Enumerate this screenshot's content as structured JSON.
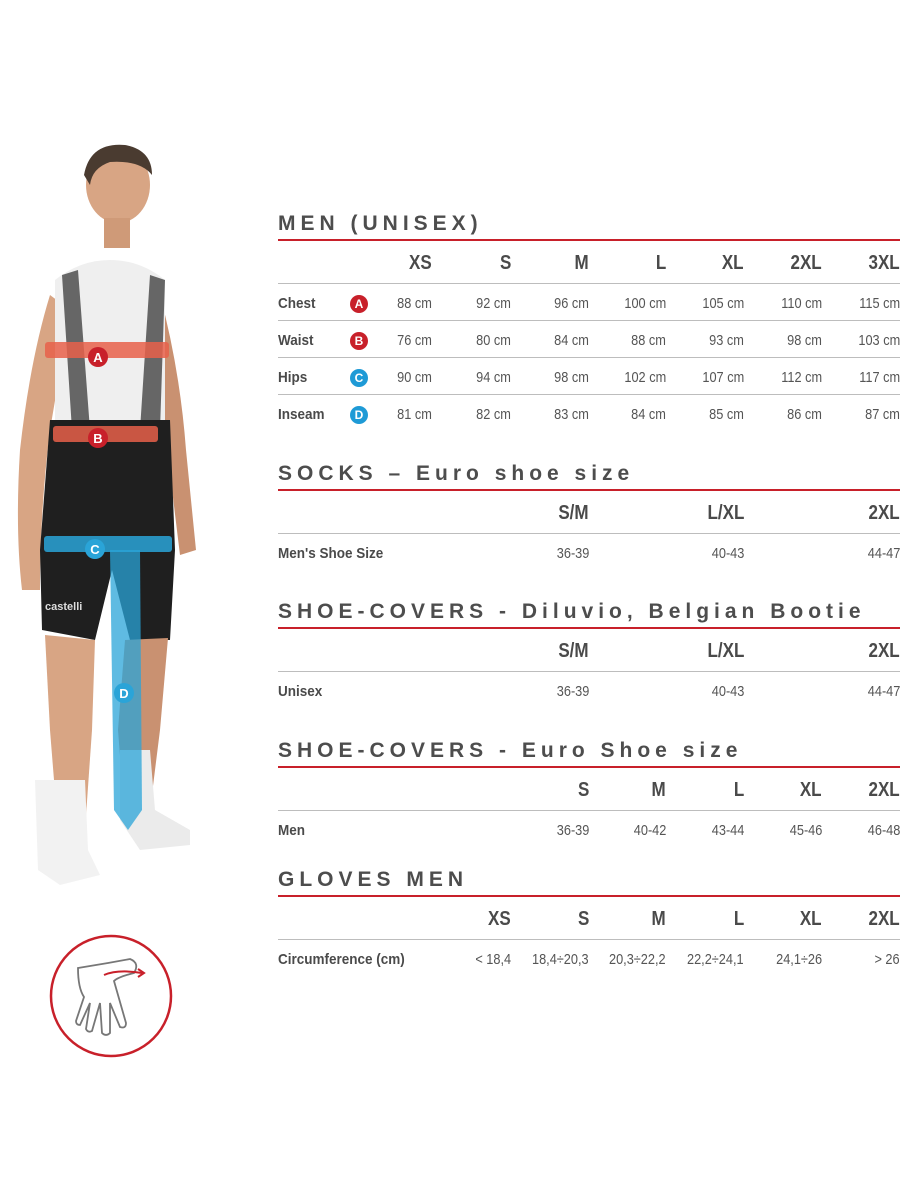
{
  "colors": {
    "accent_red": "#c8202a",
    "badge_red": "#c8202a",
    "badge_blue": "#1e9ad6",
    "band_orange": "#e8604a",
    "band_blue": "#2aa4d8"
  },
  "figure": {
    "labels": [
      "A",
      "B",
      "C",
      "D"
    ],
    "brand_text": "castelli"
  },
  "glove_icon": "hand-measure-icon",
  "sections": [
    {
      "title": "MEN (UNISEX)",
      "columns": [
        "XS",
        "S",
        "M",
        "L",
        "XL",
        "2XL",
        "3XL"
      ],
      "rows": [
        {
          "label": "Chest",
          "badge": "A",
          "badge_color": "red",
          "values": [
            "88 cm",
            "92 cm",
            "96 cm",
            "100 cm",
            "105 cm",
            "110 cm",
            "115 cm"
          ]
        },
        {
          "label": "Waist",
          "badge": "B",
          "badge_color": "red",
          "values": [
            "76 cm",
            "80 cm",
            "84 cm",
            "88 cm",
            "93 cm",
            "98 cm",
            "103 cm"
          ]
        },
        {
          "label": "Hips",
          "badge": "C",
          "badge_color": "blue",
          "values": [
            "90 cm",
            "94 cm",
            "98 cm",
            "102 cm",
            "107 cm",
            "112 cm",
            "117 cm"
          ]
        },
        {
          "label": "Inseam",
          "badge": "D",
          "badge_color": "blue",
          "values": [
            "81 cm",
            "82 cm",
            "83 cm",
            "84 cm",
            "85 cm",
            "86 cm",
            "87 cm"
          ]
        }
      ]
    },
    {
      "title": "SOCKS – Euro shoe size",
      "columns": [
        "S/M",
        "L/XL",
        "2XL"
      ],
      "rows": [
        {
          "label": "Men's Shoe Size",
          "values": [
            "36-39",
            "40-43",
            "44-47"
          ]
        }
      ]
    },
    {
      "title": "SHOE-COVERS - Diluvio, Belgian Bootie",
      "columns": [
        "S/M",
        "L/XL",
        "2XL"
      ],
      "rows": [
        {
          "label": "Unisex",
          "values": [
            "36-39",
            "40-43",
            "44-47"
          ]
        }
      ]
    },
    {
      "title": "SHOE-COVERS - Euro Shoe size",
      "columns": [
        "S",
        "M",
        "L",
        "XL",
        "2XL"
      ],
      "rows": [
        {
          "label": "Men",
          "values": [
            "36-39",
            "40-42",
            "43-44",
            "45-46",
            "46-48"
          ]
        }
      ]
    },
    {
      "title": "GLOVES MEN",
      "columns": [
        "XS",
        "S",
        "M",
        "L",
        "XL",
        "2XL"
      ],
      "rows": [
        {
          "label": "Circumference (cm)",
          "values": [
            "< 18,4",
            "18,4÷20,3",
            "20,3÷22,2",
            "22,2÷24,1",
            "24,1÷26",
            "> 26"
          ]
        }
      ]
    }
  ]
}
